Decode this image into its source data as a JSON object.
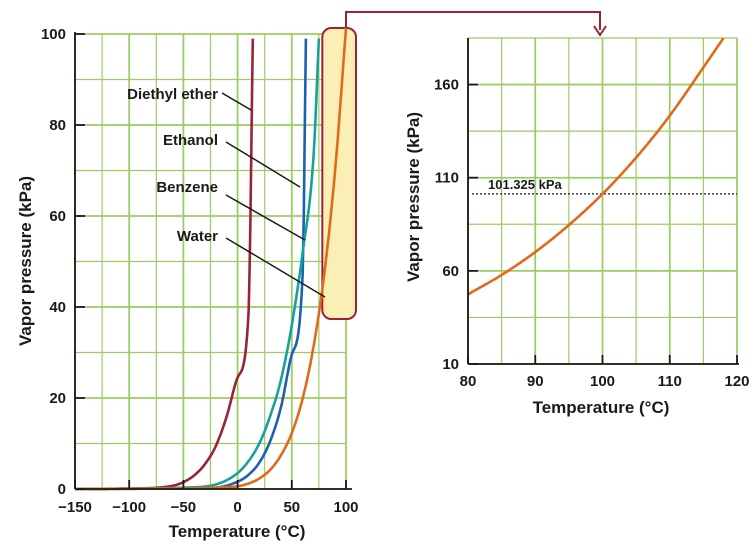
{
  "chart_data": [
    {
      "type": "line",
      "xlabel": "Temperature (°C)",
      "ylabel": "Vapor pressure (kPa)",
      "xlim": [
        -150,
        100
      ],
      "ylim": [
        0,
        100
      ],
      "xticks": [
        "−150",
        "−100",
        "−50",
        "0",
        "50",
        "100"
      ],
      "yticks": [
        "0",
        "20",
        "40",
        "60",
        "80",
        "100"
      ],
      "grid": true,
      "grid_color": "#9ccc65",
      "series": [
        {
          "name": "Diethyl ether",
          "color": "#9b2335",
          "x": [
            -150,
            -100,
            -60,
            -50,
            -40,
            -30,
            -20,
            -10,
            0,
            10,
            14
          ],
          "y": [
            0,
            0.1,
            0.7,
            1.5,
            3.0,
            5.5,
            9.5,
            16,
            24.5,
            38,
            99
          ]
        },
        {
          "name": "Ethanol",
          "color": "#1f5fb0",
          "x": [
            -150,
            -100,
            -50,
            -20,
            0,
            10,
            20,
            30,
            40,
            50,
            60,
            63
          ],
          "y": [
            0,
            0.05,
            0.1,
            0.3,
            1.6,
            3.1,
            5.8,
            10.5,
            18,
            29.5,
            47,
            99
          ]
        },
        {
          "name": "Benzene",
          "color": "#16a29a",
          "x": [
            -150,
            -100,
            -50,
            -20,
            0,
            10,
            20,
            30,
            40,
            50,
            60,
            70,
            75
          ],
          "y": [
            0,
            0.1,
            0.3,
            1.0,
            3.5,
            6.1,
            10,
            16,
            24,
            36,
            52,
            73,
            99
          ]
        },
        {
          "name": "Water",
          "color": "#e06a1b",
          "x": [
            -150,
            -100,
            -50,
            -20,
            0,
            10,
            20,
            30,
            40,
            50,
            60,
            70,
            80,
            90,
            100
          ],
          "y": [
            0,
            0.05,
            0.1,
            0.3,
            0.6,
            1.2,
            2.3,
            4.2,
            7.4,
            12.3,
            19.9,
            31.2,
            47.4,
            70.1,
            101.3
          ]
        }
      ],
      "annotations": [
        "Diethyl ether",
        "Ethanol",
        "Benzene",
        "Water"
      ],
      "highlight_region": {
        "x": [
          80,
          100
        ],
        "y": [
          40,
          100
        ],
        "fill": "#fbefb6",
        "stroke": "#9b2335"
      }
    },
    {
      "type": "line",
      "xlabel": "Temperature (°C)",
      "ylabel": "Vapor pressure (kPa)",
      "xlim": [
        80,
        120
      ],
      "ylim": [
        10,
        185
      ],
      "xticks": [
        "80",
        "90",
        "100",
        "110",
        "120"
      ],
      "yticks": [
        "10",
        "60",
        "110",
        "160"
      ],
      "grid": true,
      "series": [
        {
          "name": "Water",
          "color": "#e06a1b",
          "x": [
            80,
            85,
            90,
            95,
            100,
            105,
            110,
            115,
            118
          ],
          "y": [
            47.4,
            57.8,
            70.1,
            84.6,
            101.3,
            120.8,
            143.3,
            169.2,
            185
          ]
        }
      ],
      "reference_line": {
        "y": 101.325,
        "label": "101.325 kPa"
      }
    }
  ]
}
